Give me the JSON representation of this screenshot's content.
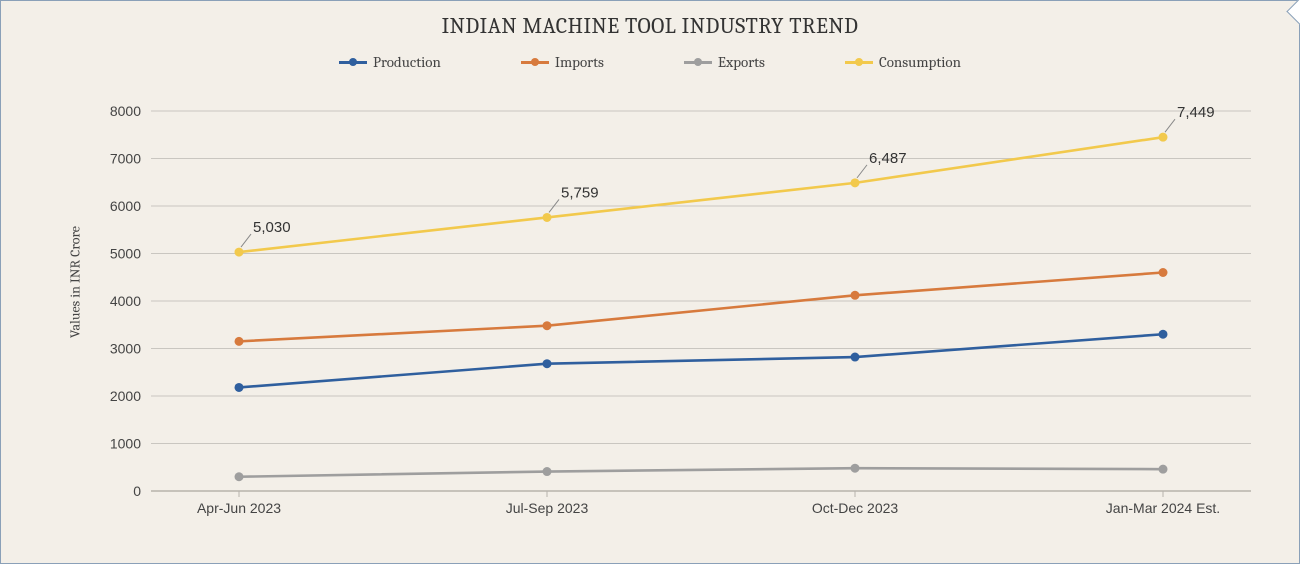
{
  "chart": {
    "type": "line",
    "title": "INDIAN MACHINE TOOL INDUSTRY TREND",
    "title_fontsize": 22,
    "background_color": "#f3efe8",
    "border_color": "#8aa0b8",
    "y_axis_label": "Values in INR Crore",
    "label_fontsize": 14,
    "tick_fontsize": 14,
    "categories": [
      "Apr-Jun 2023",
      "Jul-Sep 2023",
      "Oct-Dec 2023",
      "Jan-Mar 2024 Est."
    ],
    "ylim": [
      0,
      8000
    ],
    "ytick_step": 1000,
    "grid_color": "#c9c6c0",
    "axis_color": "#b7b3ab",
    "line_width": 2.6,
    "marker_radius": 4.5,
    "series": [
      {
        "name": "Production",
        "color": "#2f5f9e",
        "values": [
          2180,
          2680,
          2820,
          3300
        ],
        "show_labels": false
      },
      {
        "name": "Imports",
        "color": "#d77a3d",
        "values": [
          3150,
          3480,
          4120,
          4600
        ],
        "show_labels": false
      },
      {
        "name": "Exports",
        "color": "#9e9e9e",
        "values": [
          300,
          410,
          480,
          460
        ],
        "show_labels": false
      },
      {
        "name": "Consumption",
        "color": "#f2c94c",
        "values": [
          5030,
          5759,
          6487,
          7449
        ],
        "show_labels": true,
        "labels": [
          "5,030",
          "5,759",
          "6,487",
          "7,449"
        ]
      }
    ]
  }
}
